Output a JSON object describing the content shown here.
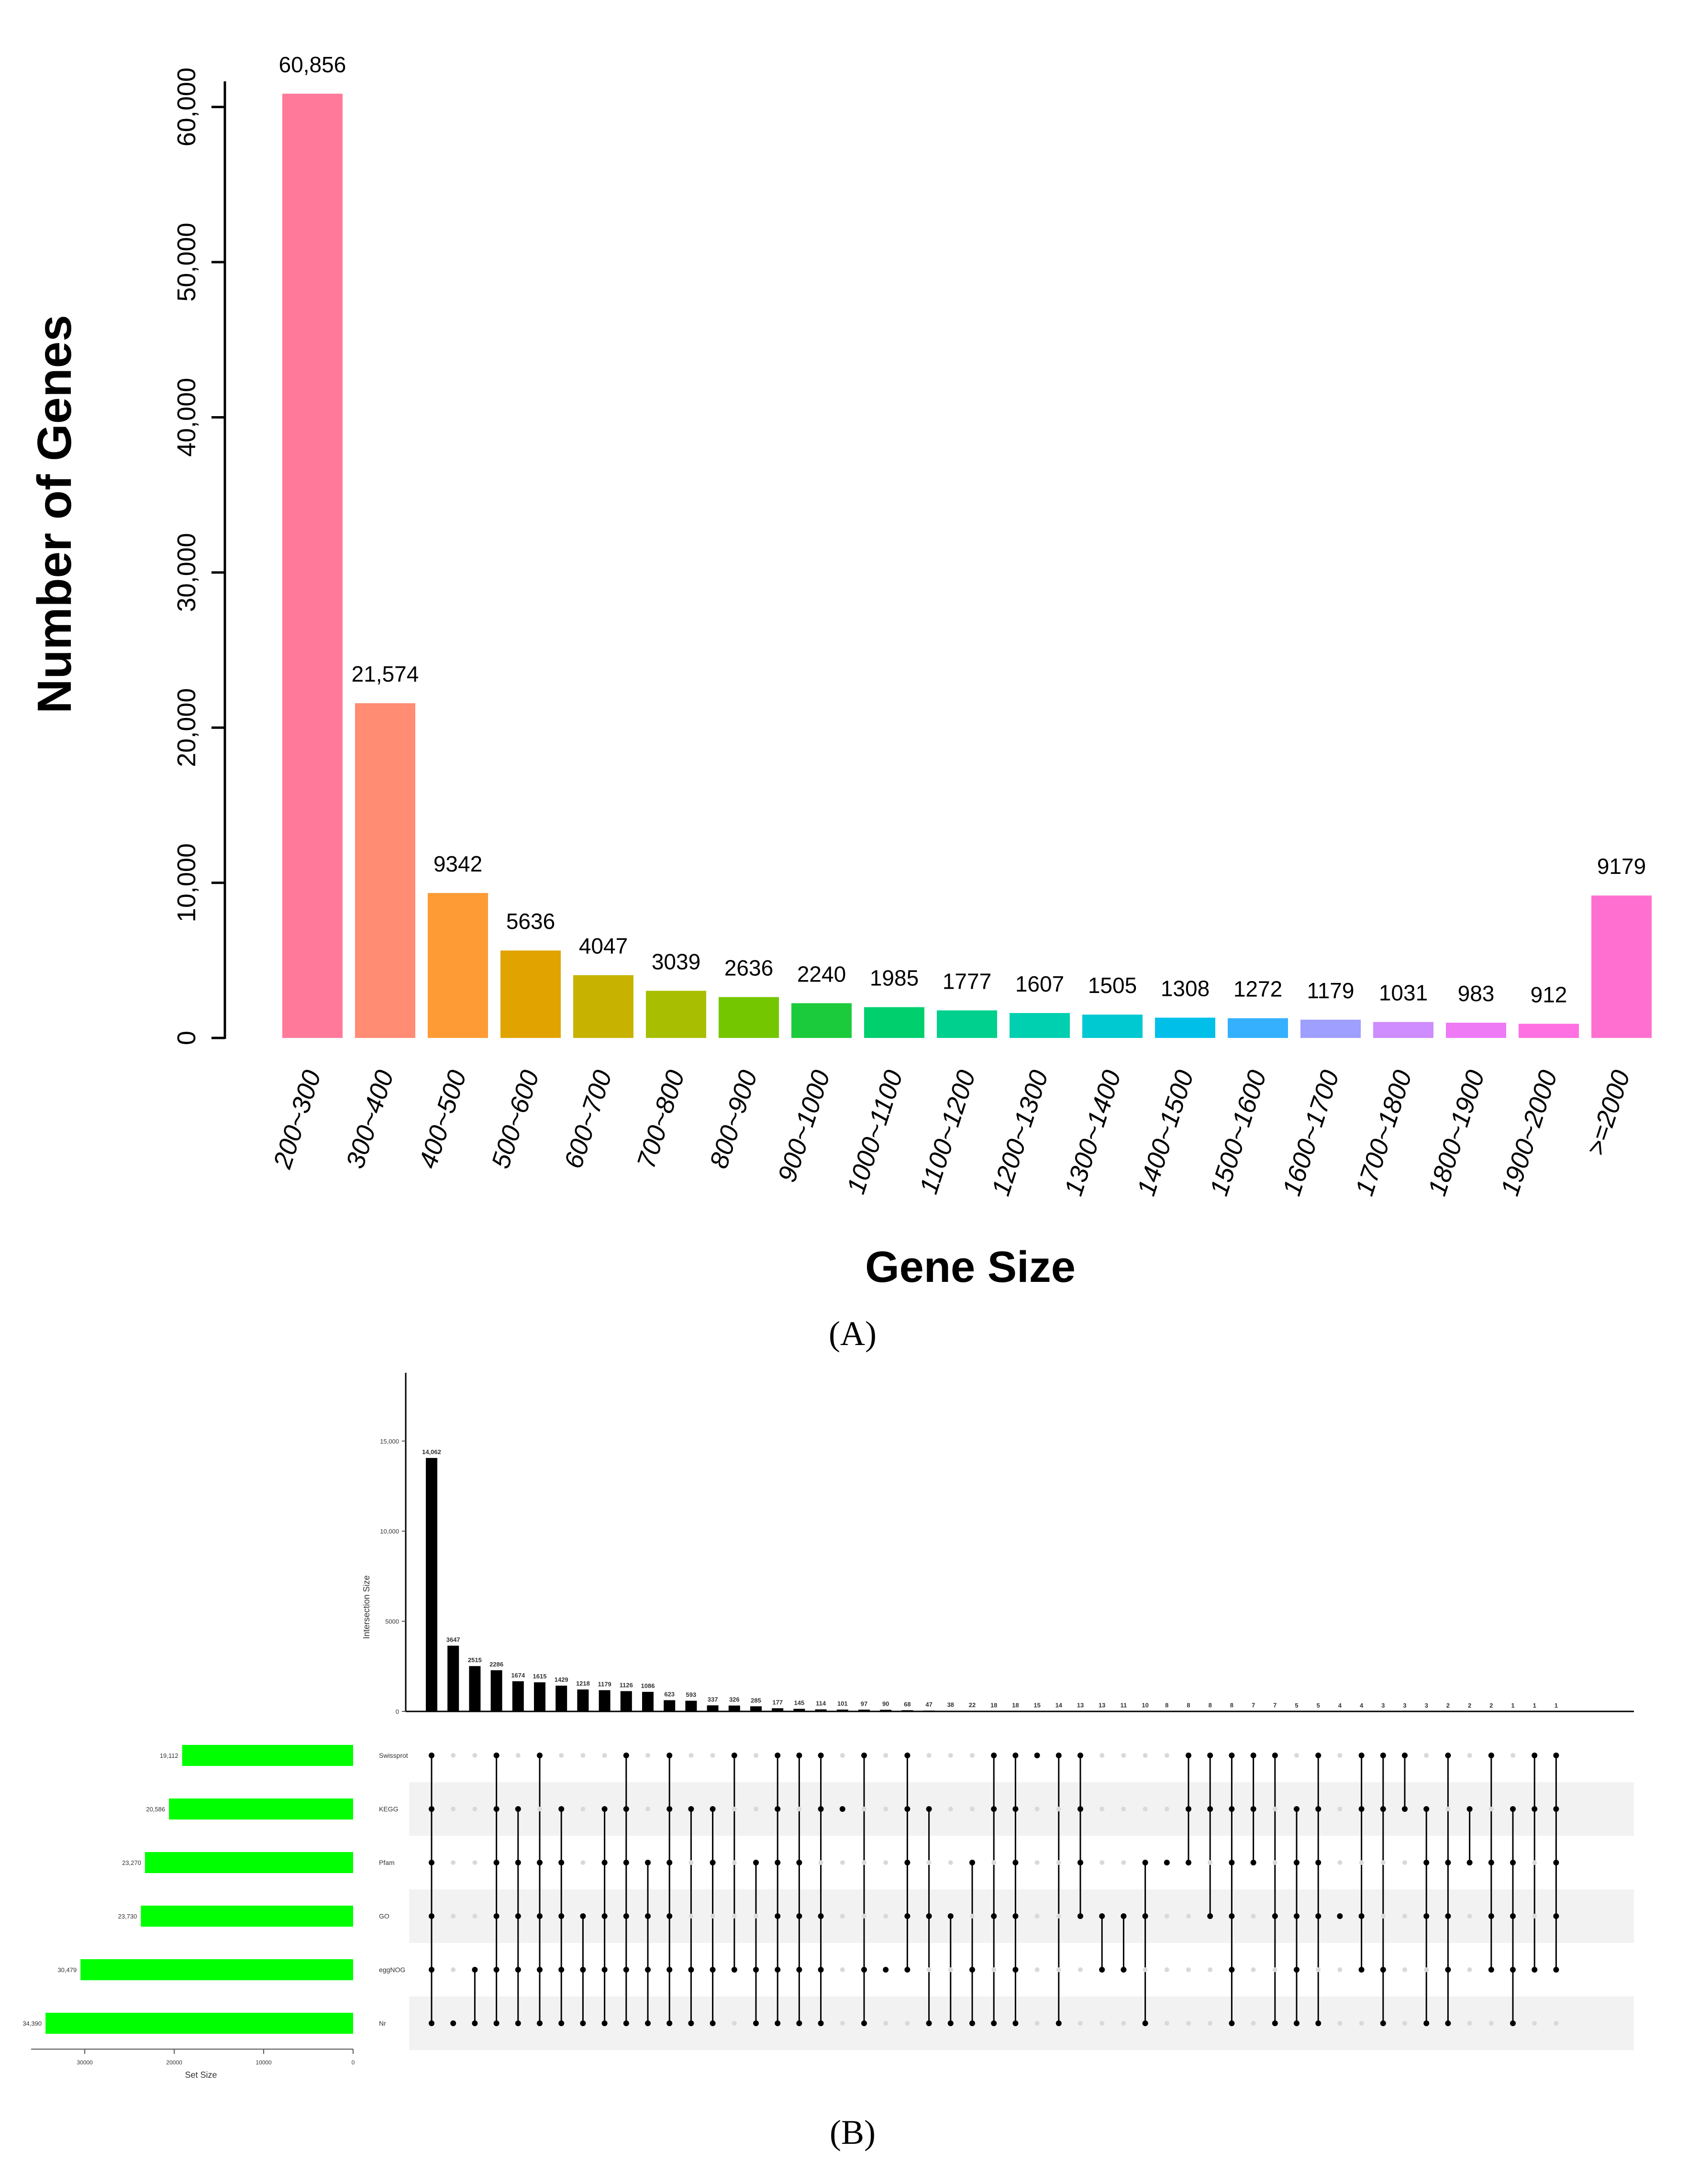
{
  "chart_data": [
    {
      "type": "bar",
      "panel_label": "(A)",
      "categories": [
        "200~300",
        "300~400",
        "400~500",
        "500~600",
        "600~700",
        "700~800",
        "800~900",
        "900~1000",
        "1000~1100",
        "1100~1200",
        "1200~1300",
        "1300~1400",
        "1400~1500",
        "1500~1600",
        "1600~1700",
        "1700~1800",
        "1800~1900",
        "1900~2000",
        ">=2000"
      ],
      "values": [
        60856,
        21574,
        9342,
        5636,
        4047,
        3039,
        2636,
        2240,
        1985,
        1777,
        1607,
        1505,
        1308,
        1272,
        1179,
        1031,
        983,
        912,
        9179
      ],
      "value_labels": [
        "60,856",
        "21,574",
        "9342",
        "5636",
        "4047",
        "3039",
        "2636",
        "2240",
        "1985",
        "1777",
        "1607",
        "1505",
        "1308",
        "1272",
        "1179",
        "1031",
        "983",
        "912",
        "9179"
      ],
      "colors": [
        "#FF7A9A",
        "#FF8C73",
        "#FF9B35",
        "#E1A300",
        "#C8B200",
        "#A8BE00",
        "#74C700",
        "#1CCB3C",
        "#00CF6E",
        "#00D08D",
        "#00CFB0",
        "#00C9D2",
        "#00C0EA",
        "#35B0FF",
        "#9F9FFF",
        "#CE8CFF",
        "#EE7AF5",
        "#FF70E3",
        "#FF6FD0"
      ],
      "ylabel": "Number of Genes",
      "xlabel": "Gene Size",
      "yticks": [
        0,
        10000,
        20000,
        30000,
        40000,
        50000,
        60000
      ],
      "ytick_labels": [
        "0",
        "10,000",
        "20,000",
        "30,000",
        "40,000",
        "50,000",
        "60,000"
      ],
      "ylim": [
        0,
        61500
      ]
    },
    {
      "type": "upset",
      "panel_label": "(B)",
      "intersection_ylabel": "Intersection Size",
      "set_size_xlabel": "Set Size",
      "intersection_yticks": [
        0,
        5000,
        10000,
        15000
      ],
      "intersection_ytick_labels": [
        "0",
        "5000",
        "10,000",
        "15,000"
      ],
      "set_size_ticks": [
        30000,
        20000,
        10000,
        0
      ],
      "set_size_tick_labels": [
        "30000",
        "20000",
        "10000",
        "0"
      ],
      "sets": [
        {
          "name": "Swissprot",
          "size": 19112,
          "label": "19,112"
        },
        {
          "name": "KEGG",
          "size": 20586,
          "label": "20,586"
        },
        {
          "name": "Pfam",
          "size": 23270,
          "label": "23,270"
        },
        {
          "name": "GO",
          "size": 23730,
          "label": "23,730"
        },
        {
          "name": "eggNOG",
          "size": 30479,
          "label": "30,479"
        },
        {
          "name": "Nr",
          "size": 34390,
          "label": "34,390"
        }
      ],
      "intersection_values": [
        14062,
        3647,
        2515,
        2286,
        1674,
        1615,
        1429,
        1218,
        1179,
        1126,
        1086,
        623,
        593,
        337,
        326,
        285,
        177,
        145,
        114,
        101,
        97,
        90,
        68,
        47,
        38,
        22,
        18,
        18,
        15,
        14,
        13,
        13,
        11,
        10,
        8,
        8,
        8,
        8,
        7,
        7,
        5,
        5,
        4,
        4,
        3,
        3,
        3,
        2,
        2,
        2,
        1,
        1,
        1
      ],
      "intersection_labels": [
        "14,062",
        "3647",
        "2515",
        "2286",
        "1674",
        "1615",
        "1429",
        "1218",
        "1179",
        "1126",
        "1086",
        "623",
        "593",
        "337",
        "326",
        "285",
        "177",
        "145",
        "114",
        "101",
        "97",
        "90",
        "68",
        "47",
        "38",
        "22",
        "18",
        "18",
        "15",
        "14",
        "13",
        "13",
        "11",
        "10",
        "8",
        "8",
        "8",
        "8",
        "7",
        "7",
        "5",
        "5",
        "4",
        "4",
        "3",
        "3",
        "3",
        "2",
        "2",
        "2",
        "1",
        "1",
        "1"
      ],
      "matrix_membership": [
        [
          0,
          1,
          2,
          3,
          4,
          5
        ],
        [
          5
        ],
        [
          4,
          5
        ],
        [
          0,
          1,
          2,
          3,
          4,
          5
        ],
        [
          1,
          2,
          3,
          4,
          5
        ],
        [
          0,
          2,
          3,
          4,
          5
        ],
        [
          1,
          2,
          3,
          4,
          5
        ],
        [
          3,
          4,
          5
        ],
        [
          1,
          2,
          3,
          4,
          5
        ],
        [
          0,
          1,
          2,
          3,
          4,
          5
        ],
        [
          2,
          3,
          4,
          5
        ],
        [
          0,
          1,
          2,
          3,
          4,
          5
        ],
        [
          1,
          4,
          5
        ],
        [
          1,
          2,
          4,
          5
        ],
        [
          0,
          4
        ],
        [
          2,
          4,
          5
        ],
        [
          0,
          1,
          2,
          3,
          4,
          5
        ],
        [
          0,
          2,
          3,
          4,
          5
        ],
        [
          0,
          1,
          3,
          4,
          5
        ],
        [
          1
        ],
        [
          0,
          4,
          5
        ],
        [
          4
        ],
        [
          0,
          1,
          2,
          3,
          4
        ],
        [
          1,
          3,
          5
        ],
        [
          3,
          5
        ],
        [
          2,
          4,
          5
        ],
        [
          0,
          1,
          3,
          5
        ],
        [
          0,
          1,
          2,
          3,
          4,
          5
        ],
        [
          0
        ],
        [
          0,
          5
        ],
        [
          0,
          1,
          2,
          3
        ],
        [
          3,
          4
        ],
        [
          3,
          4
        ],
        [
          2,
          3,
          5
        ],
        [
          2
        ],
        [
          0,
          1,
          2
        ],
        [
          0,
          1,
          3
        ],
        [
          0,
          1,
          2,
          3,
          4,
          5
        ],
        [
          0,
          1,
          2
        ],
        [
          0,
          3,
          5
        ],
        [
          1,
          2,
          3,
          4,
          5
        ],
        [
          0,
          1,
          2,
          3,
          5
        ],
        [
          3
        ],
        [
          0,
          1,
          3,
          4
        ],
        [
          0,
          1,
          4,
          5
        ],
        [
          0,
          1
        ],
        [
          1,
          2,
          3,
          5
        ],
        [
          0,
          2,
          3,
          4,
          5
        ],
        [
          1,
          2
        ],
        [
          0,
          2,
          3,
          4
        ],
        [
          1,
          2,
          3,
          4,
          5
        ],
        [
          0,
          1,
          4
        ],
        [
          0,
          1,
          2,
          3,
          4
        ]
      ]
    }
  ]
}
